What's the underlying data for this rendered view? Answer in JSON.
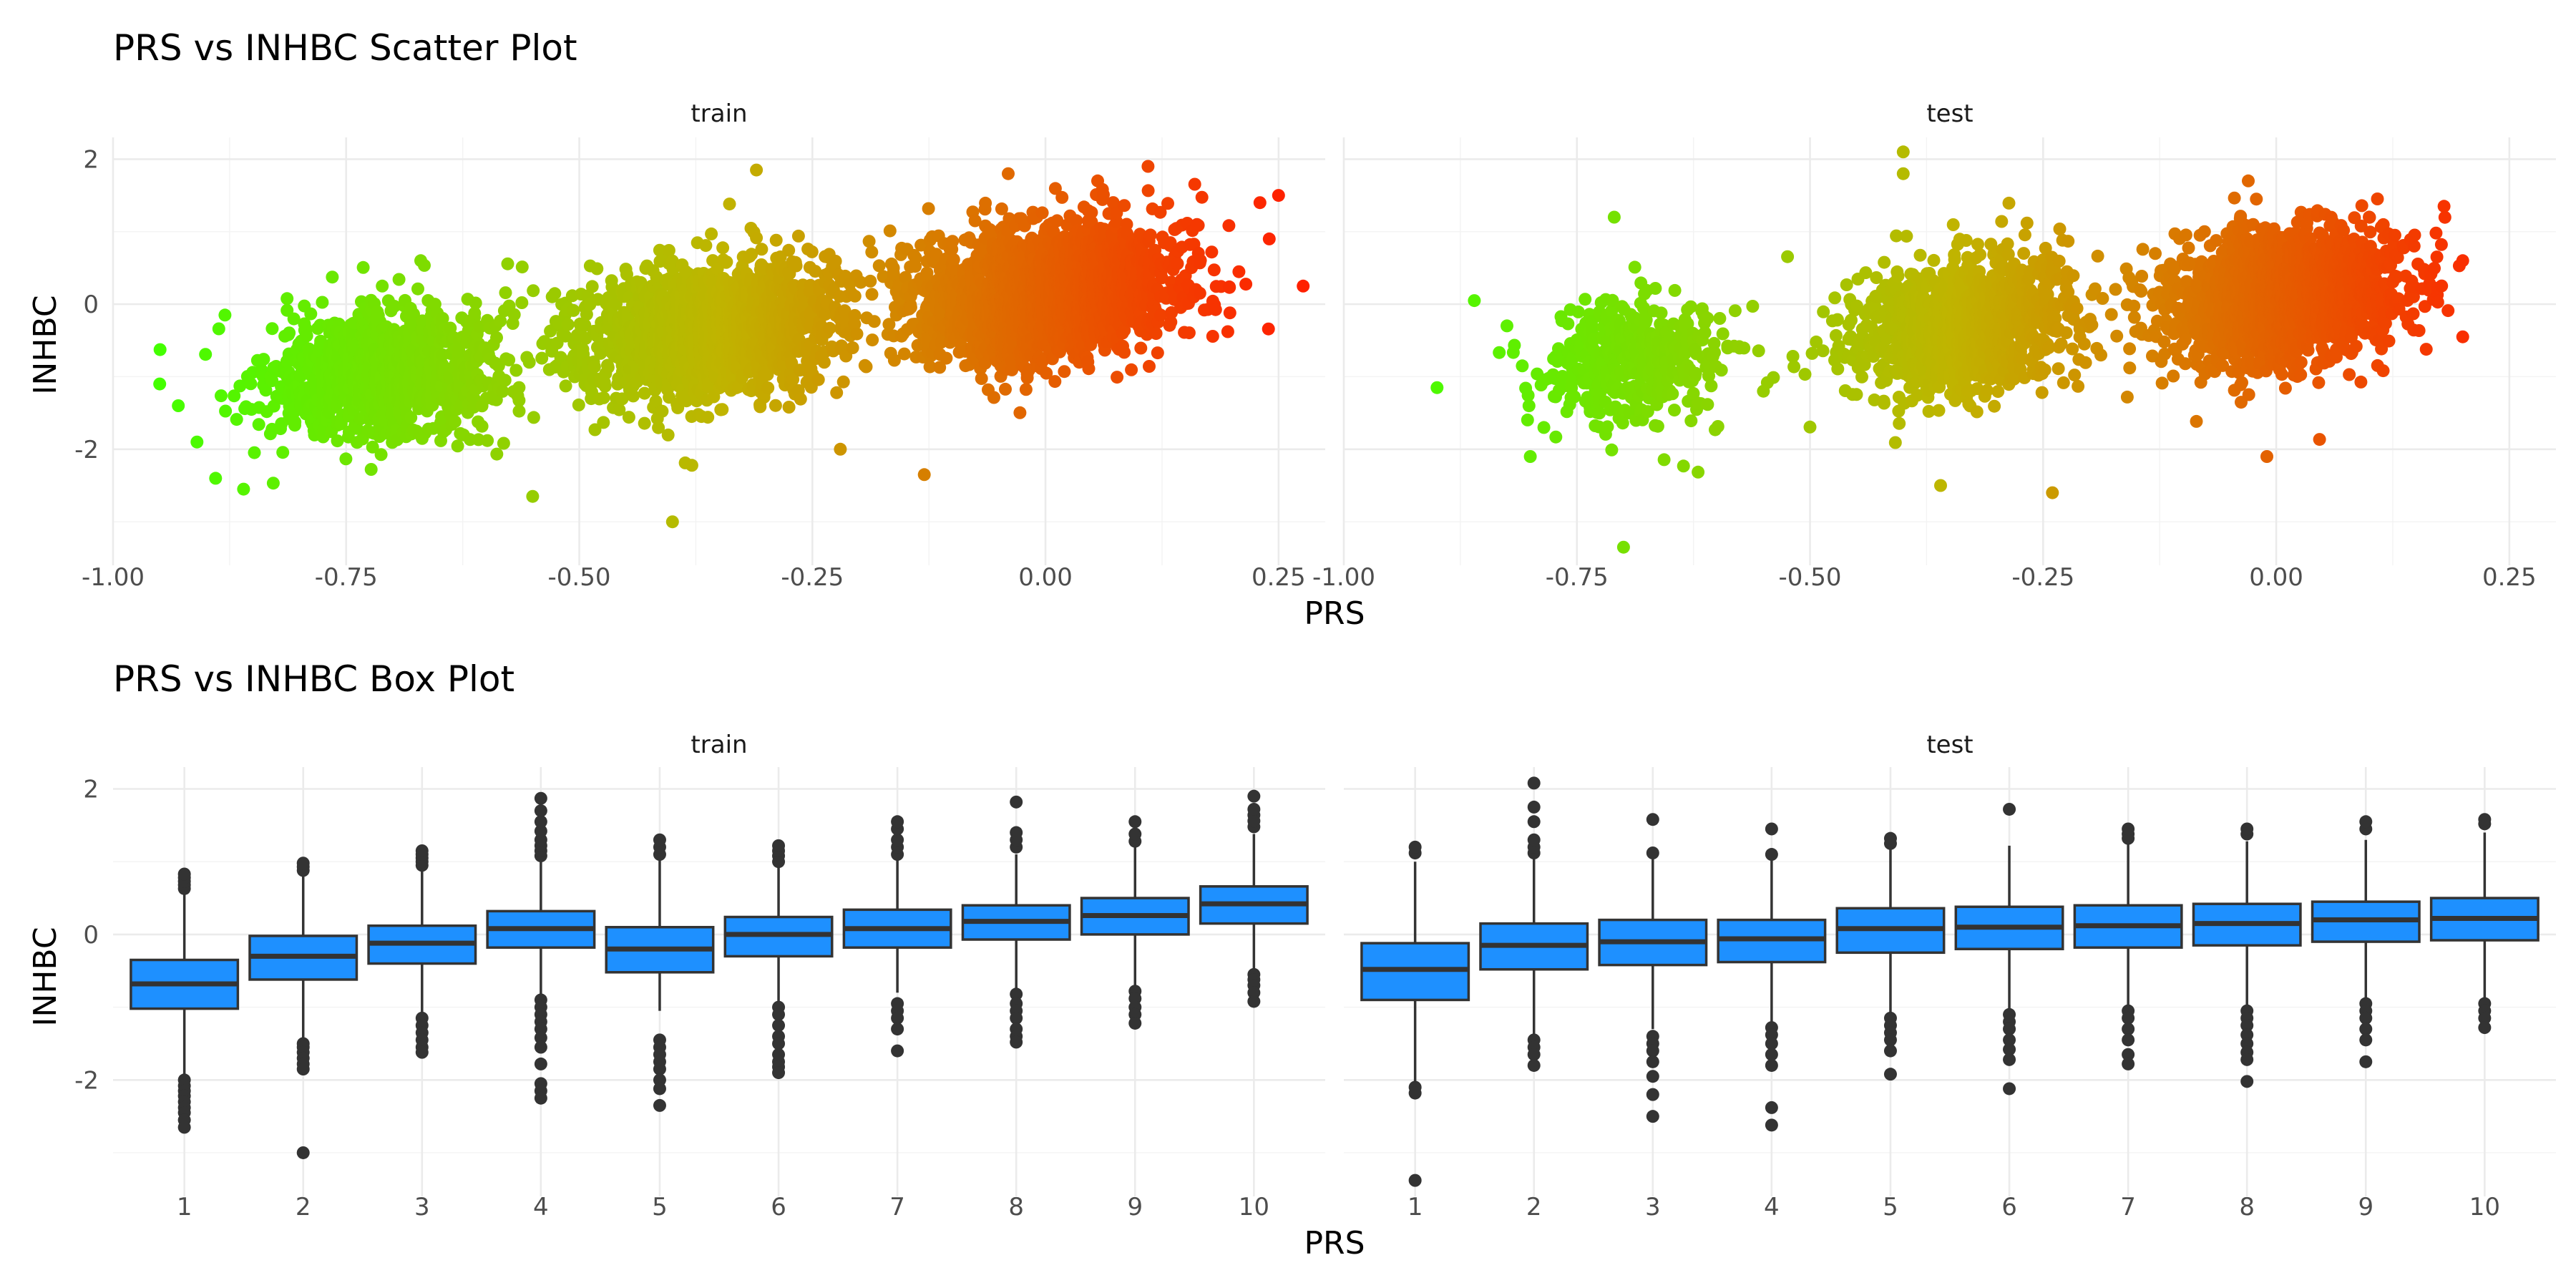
{
  "chart_data": [
    {
      "type": "scatter",
      "title": "PRS vs INHBC Scatter Plot",
      "xlabel": "PRS",
      "ylabel": "INHBC",
      "facets": [
        "train",
        "test"
      ],
      "xlim": [
        -1.0,
        0.3
      ],
      "ylim": [
        -3.6,
        2.3
      ],
      "x_ticks": [
        "-1.00",
        "-0.75",
        "-0.50",
        "-0.25",
        "0.00",
        "0.25"
      ],
      "x_tick_values": [
        -1.0,
        -0.75,
        -0.5,
        -0.25,
        0.0,
        0.25
      ],
      "y_ticks": [
        "2",
        "0",
        "-2"
      ],
      "y_tick_values": [
        2,
        0,
        -2
      ],
      "grid": true,
      "color_scale": {
        "low": "#44ff00",
        "mid": "#c0b400",
        "high": "#ff2000",
        "variable": "PRS"
      },
      "clusters": {
        "train": [
          {
            "x_mean": -0.71,
            "x_sd": 0.06,
            "y_mean": -0.95,
            "y_sd": 0.45,
            "n": 1100
          },
          {
            "x_mean": -0.36,
            "x_sd": 0.07,
            "y_mean": -0.35,
            "y_sd": 0.45,
            "n": 1700
          },
          {
            "x_mean": 0.0,
            "x_sd": 0.07,
            "y_mean": 0.15,
            "y_sd": 0.45,
            "n": 2200
          }
        ],
        "test": [
          {
            "x_mean": -0.69,
            "x_sd": 0.05,
            "y_mean": -0.75,
            "y_sd": 0.45,
            "n": 450
          },
          {
            "x_mean": -0.34,
            "x_sd": 0.06,
            "y_mean": -0.3,
            "y_sd": 0.45,
            "n": 1200
          },
          {
            "x_mean": 0.01,
            "x_sd": 0.06,
            "y_mean": 0.1,
            "y_sd": 0.45,
            "n": 1700
          }
        ]
      },
      "outliers": {
        "train": [
          {
            "x": -0.95,
            "y": -1.1
          },
          {
            "x": -0.93,
            "y": -1.4
          },
          {
            "x": -0.91,
            "y": -1.9
          },
          {
            "x": -0.89,
            "y": -2.4
          },
          {
            "x": -0.86,
            "y": -2.55
          },
          {
            "x": -0.88,
            "y": -0.15
          },
          {
            "x": -0.67,
            "y": 0.6
          },
          {
            "x": -0.55,
            "y": -2.65
          },
          {
            "x": -0.4,
            "y": -3.0
          },
          {
            "x": -0.31,
            "y": 1.85
          },
          {
            "x": -0.04,
            "y": 1.8
          },
          {
            "x": 0.11,
            "y": 1.9
          },
          {
            "x": 0.23,
            "y": 1.4
          },
          {
            "x": 0.25,
            "y": 1.5
          },
          {
            "x": 0.24,
            "y": 0.9
          },
          {
            "x": -0.13,
            "y": -2.35
          },
          {
            "x": -0.22,
            "y": -2.0
          }
        ],
        "test": [
          {
            "x": -0.9,
            "y": -1.15
          },
          {
            "x": -0.86,
            "y": 0.05
          },
          {
            "x": -0.71,
            "y": 1.2
          },
          {
            "x": -0.7,
            "y": -3.35
          },
          {
            "x": -0.8,
            "y": -2.1
          },
          {
            "x": -0.4,
            "y": 2.1
          },
          {
            "x": -0.4,
            "y": 1.8
          },
          {
            "x": -0.36,
            "y": -2.5
          },
          {
            "x": -0.24,
            "y": -2.6
          },
          {
            "x": -0.03,
            "y": 1.7
          },
          {
            "x": 0.2,
            "y": 0.6
          },
          {
            "x": 0.2,
            "y": -0.45
          },
          {
            "x": 0.18,
            "y": 1.35
          },
          {
            "x": -0.01,
            "y": -2.1
          },
          {
            "x": -0.55,
            "y": -1.2
          }
        ]
      }
    },
    {
      "type": "box",
      "title": "PRS vs INHBC Box Plot",
      "xlabel": "PRS",
      "ylabel": "INHBC",
      "facets": [
        "train",
        "test"
      ],
      "categories": [
        "1",
        "2",
        "3",
        "4",
        "5",
        "6",
        "7",
        "8",
        "9",
        "10"
      ],
      "ylim": [
        -3.6,
        2.3
      ],
      "y_ticks": [
        "2",
        "0",
        "-2"
      ],
      "y_tick_values": [
        2,
        0,
        -2
      ],
      "grid": true,
      "box_color": "#1e90ff",
      "series": [
        {
          "facet": "train",
          "boxes": [
            {
              "category": "1",
              "min": -1.95,
              "q1": -1.02,
              "median": -0.68,
              "q3": -0.35,
              "max": 0.58,
              "outliers": [
                0.63,
                0.68,
                0.73,
                0.78,
                0.83,
                -2.0,
                -2.08,
                -2.15,
                -2.22,
                -2.3,
                -2.38,
                -2.45,
                -2.55,
                -2.65
              ]
            },
            {
              "category": "2",
              "min": -1.45,
              "q1": -0.62,
              "median": -0.3,
              "q3": -0.02,
              "max": 0.82,
              "outliers": [
                0.88,
                0.93,
                0.98,
                -1.5,
                -1.55,
                -1.62,
                -1.7,
                -1.78,
                -1.85,
                -3.0
              ]
            },
            {
              "category": "3",
              "min": -1.1,
              "q1": -0.4,
              "median": -0.12,
              "q3": 0.12,
              "max": 0.9,
              "outliers": [
                0.95,
                1.0,
                1.05,
                1.1,
                1.15,
                -1.15,
                -1.25,
                -1.35,
                -1.45,
                -1.55,
                -1.62
              ]
            },
            {
              "category": "4",
              "min": -0.85,
              "q1": -0.18,
              "median": 0.08,
              "q3": 0.32,
              "max": 1.02,
              "outliers": [
                1.08,
                1.15,
                1.22,
                1.3,
                1.42,
                1.55,
                1.7,
                1.87,
                -0.9,
                -1.0,
                -1.1,
                -1.2,
                -1.3,
                -1.42,
                -1.55,
                -1.78,
                -2.05,
                -2.15,
                -2.25
              ]
            },
            {
              "category": "5",
              "min": -1.05,
              "q1": -0.52,
              "median": -0.2,
              "q3": 0.1,
              "max": 1.05,
              "outliers": [
                1.1,
                1.2,
                1.3,
                -1.45,
                -1.55,
                -1.65,
                -1.75,
                -1.85,
                -2.0,
                -2.12,
                -2.35
              ]
            },
            {
              "category": "6",
              "min": -0.92,
              "q1": -0.3,
              "median": 0.0,
              "q3": 0.24,
              "max": 0.95,
              "outliers": [
                1.0,
                1.08,
                1.15,
                1.22,
                -1.0,
                -1.1,
                -1.25,
                -1.4,
                -1.5,
                -1.65,
                -1.75,
                -1.82,
                -1.9
              ]
            },
            {
              "category": "7",
              "min": -0.8,
              "q1": -0.18,
              "median": 0.08,
              "q3": 0.34,
              "max": 1.05,
              "outliers": [
                1.1,
                1.2,
                1.3,
                1.45,
                1.55,
                -0.95,
                -1.05,
                -1.15,
                -1.3,
                -1.6
              ]
            },
            {
              "category": "8",
              "min": -0.75,
              "q1": -0.07,
              "median": 0.18,
              "q3": 0.4,
              "max": 1.1,
              "outliers": [
                1.2,
                1.3,
                1.4,
                1.82,
                -0.82,
                -0.95,
                -1.05,
                -1.15,
                -1.3,
                -1.4,
                -1.48
              ]
            },
            {
              "category": "9",
              "min": -0.7,
              "q1": 0.0,
              "median": 0.26,
              "q3": 0.5,
              "max": 1.2,
              "outliers": [
                1.28,
                1.38,
                1.55,
                -0.78,
                -0.88,
                -1.0,
                -1.1,
                -1.22
              ]
            },
            {
              "category": "10",
              "min": -0.5,
              "q1": 0.15,
              "median": 0.42,
              "q3": 0.66,
              "max": 1.38,
              "outliers": [
                1.48,
                1.56,
                1.64,
                1.72,
                1.9,
                -0.55,
                -0.62,
                -0.7,
                -0.8,
                -0.92
              ]
            }
          ]
        },
        {
          "facet": "test",
          "boxes": [
            {
              "category": "1",
              "min": -2.05,
              "q1": -0.9,
              "median": -0.48,
              "q3": -0.12,
              "max": 1.0,
              "outliers": [
                1.12,
                1.2,
                -2.1,
                -2.18,
                -3.38
              ]
            },
            {
              "category": "2",
              "min": -1.4,
              "q1": -0.48,
              "median": -0.15,
              "q3": 0.15,
              "max": 1.05,
              "outliers": [
                1.12,
                1.2,
                1.3,
                1.55,
                1.75,
                2.08,
                -1.45,
                -1.55,
                -1.65,
                -1.8
              ]
            },
            {
              "category": "3",
              "min": -1.3,
              "q1": -0.42,
              "median": -0.1,
              "q3": 0.2,
              "max": 1.05,
              "outliers": [
                1.12,
                1.58,
                -1.4,
                -1.5,
                -1.6,
                -1.75,
                -1.95,
                -2.2,
                -2.5
              ]
            },
            {
              "category": "4",
              "min": -1.2,
              "q1": -0.38,
              "median": -0.06,
              "q3": 0.2,
              "max": 1.02,
              "outliers": [
                1.1,
                1.45,
                -1.28,
                -1.38,
                -1.5,
                -1.65,
                -1.8,
                -2.38,
                -2.62
              ]
            },
            {
              "category": "5",
              "min": -1.1,
              "q1": -0.25,
              "median": 0.08,
              "q3": 0.36,
              "max": 1.2,
              "outliers": [
                1.25,
                1.32,
                -1.15,
                -1.25,
                -1.35,
                -1.45,
                -1.6,
                -1.92
              ]
            },
            {
              "category": "6",
              "min": -1.05,
              "q1": -0.2,
              "median": 0.1,
              "q3": 0.38,
              "max": 1.22,
              "outliers": [
                1.72,
                -1.1,
                -1.2,
                -1.3,
                -1.45,
                -1.58,
                -1.72,
                -2.12
              ]
            },
            {
              "category": "7",
              "min": -1.0,
              "q1": -0.18,
              "median": 0.12,
              "q3": 0.4,
              "max": 1.25,
              "outliers": [
                1.32,
                1.38,
                1.45,
                -1.05,
                -1.15,
                -1.3,
                -1.45,
                -1.65,
                -1.78
              ]
            },
            {
              "category": "8",
              "min": -1.0,
              "q1": -0.15,
              "median": 0.15,
              "q3": 0.42,
              "max": 1.28,
              "outliers": [
                1.38,
                1.45,
                -1.05,
                -1.15,
                -1.25,
                -1.38,
                -1.5,
                -1.62,
                -1.72,
                -2.02
              ]
            },
            {
              "category": "9",
              "min": -0.9,
              "q1": -0.1,
              "median": 0.2,
              "q3": 0.45,
              "max": 1.3,
              "outliers": [
                1.45,
                1.55,
                -0.95,
                -1.05,
                -1.15,
                -1.3,
                -1.45,
                -1.75
              ]
            },
            {
              "category": "10",
              "min": -0.88,
              "q1": -0.08,
              "median": 0.22,
              "q3": 0.5,
              "max": 1.4,
              "outliers": [
                1.52,
                1.58,
                -0.95,
                -1.05,
                -1.15,
                -1.28
              ]
            }
          ]
        }
      ]
    }
  ]
}
